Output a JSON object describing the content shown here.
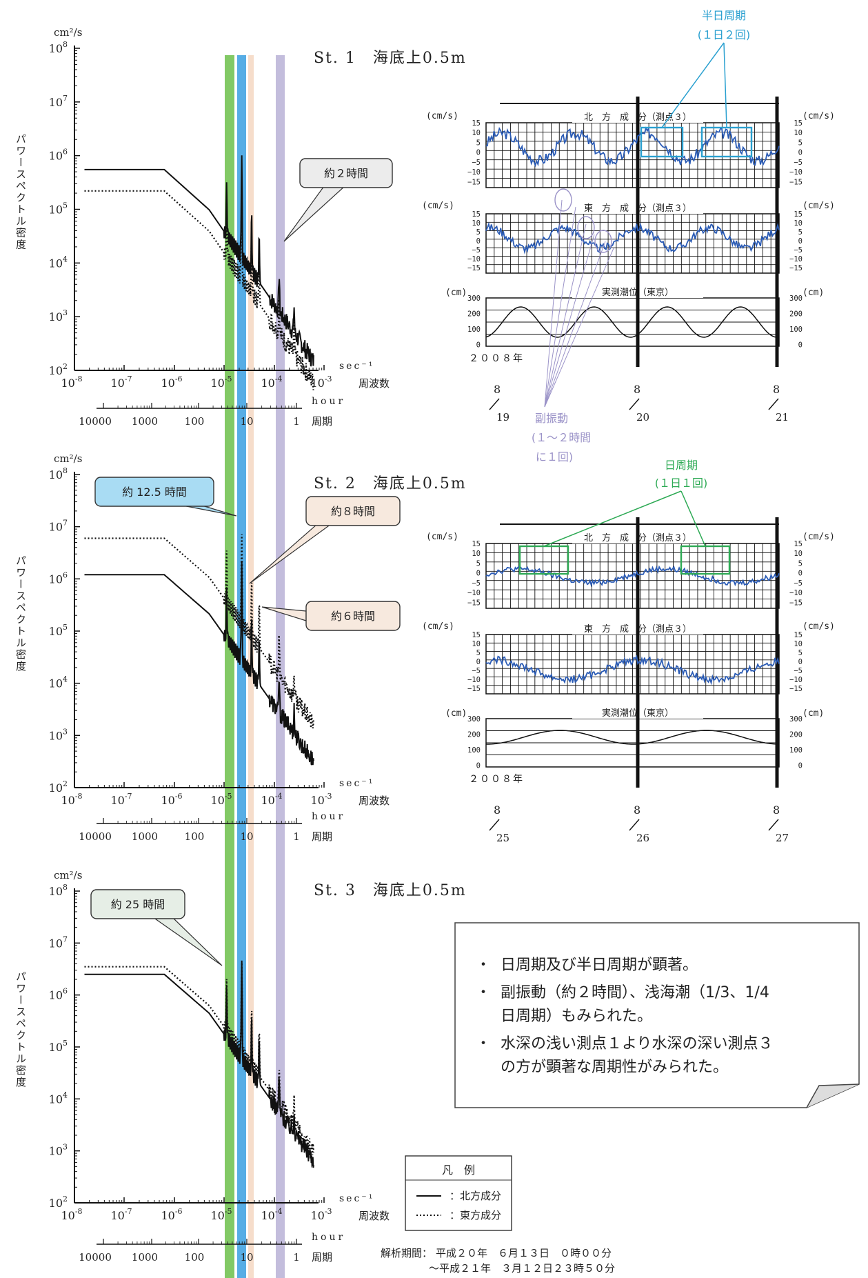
{
  "colors": {
    "band_green": "#6cc04a",
    "band_blue": "#3a9fe0",
    "band_peach": "#f4d7c2",
    "band_lavender": "#b9b2d6",
    "series_blue": "#2a5bb5",
    "box_blue": "#2aa0d0",
    "box_green": "#2eaa55",
    "callout_blue_fill": "#a9dcf3",
    "callout_gray_fill": "#ececec",
    "callout_peach_fill": "#f7e9de",
    "callout_green_fill": "#e6eee6"
  },
  "spectra": [
    {
      "title": "St. 1　海底上0.5m",
      "yunit": "cm²/s",
      "ylabel": "パワースペクトル密度",
      "xlabel_freq": "周波数",
      "xunit_freq": "sec⁻¹",
      "xlabel_period": "周期",
      "xunit_period": "hour",
      "period_ticks": [
        "10000",
        "1000",
        "100",
        "10",
        "1"
      ],
      "callouts": [
        {
          "text": "約２時間"
        }
      ]
    },
    {
      "title": "St. 2　海底上0.5m",
      "yunit": "cm²/s",
      "ylabel": "パワースペクトル密度",
      "xlabel_freq": "周波数",
      "xunit_freq": "sec⁻¹",
      "xlabel_period": "周期",
      "xunit_period": "hour",
      "period_ticks": [
        "10000",
        "1000",
        "100",
        "10",
        "1"
      ],
      "callouts": [
        {
          "text": "約 12.5 時間"
        },
        {
          "text": "約８時間"
        },
        {
          "text": "約６時間"
        }
      ]
    },
    {
      "title": "St. 3　海底上0.5m",
      "yunit": "cm²/s",
      "ylabel": "パワースペクトル密度",
      "xlabel_freq": "周波数",
      "xunit_freq": "sec⁻¹",
      "xlabel_period": "周期",
      "xunit_period": "hour",
      "period_ticks": [
        "10000",
        "1000",
        "100",
        "10",
        "1"
      ],
      "callouts": [
        {
          "text": "約 25 時間"
        }
      ]
    }
  ],
  "timeseries": [
    {
      "annotation_top": {
        "line1": "半日周期",
        "line2": "(１日２回)"
      },
      "unit_cms": "(cm/s)",
      "unit_cm": "(cm)",
      "north_label": "北　方　成　分（測点３）",
      "east_label": "東　方　成　分（測点３）",
      "tide_label": "実測潮位（東京）",
      "year_label": "２００８年",
      "date_labels": [
        "8/19",
        "8/20",
        "8/21"
      ],
      "sub_annotation": {
        "line1": "副振動",
        "line2": "(１～２時間",
        "line3": "に１回)"
      }
    },
    {
      "annotation_top": {
        "line1": "日周期",
        "line2": "(１日１回)"
      },
      "unit_cms": "(cm/s)",
      "unit_cm": "(cm)",
      "north_label": "北　方　成　分（測点３）",
      "east_label": "東　方　成　分（測点３）",
      "tide_label": "実測潮位（東京）",
      "year_label": "２００８年",
      "date_labels": [
        "8/25",
        "8/26",
        "8/27"
      ]
    }
  ],
  "note_box": {
    "items": [
      "日周期及び半日周期が顕著。",
      "副振動（約２時間）、浅海潮（1/3、1/4",
      "日周期）もみられた。",
      "水深の浅い測点１より水深の深い測点３",
      "の方が顕著な周期性がみられた。"
    ]
  },
  "legend": {
    "title": "凡　例",
    "items": [
      {
        "label": "：北方成分"
      },
      {
        "label": "：東方成分"
      }
    ]
  },
  "analysis_period": {
    "label": "解析期間：",
    "line1": "平成２０年　６月１３日　０時００分",
    "line2": "～平成２１年　３月１２日２３時５０分"
  },
  "chart_data": [
    {
      "type": "line",
      "title": "St. 1　海底上0.5m",
      "xscale": "log",
      "yscale": "log",
      "xlim": [
        1e-08,
        0.001
      ],
      "ylim": [
        100.0,
        100000000.0
      ],
      "xlabel": "周波数",
      "ylabel": "パワースペクトル密度",
      "series": [
        {
          "name": "北方成分",
          "style": "solid"
        },
        {
          "name": "東方成分",
          "style": "dotted"
        }
      ],
      "plateau": {
        "solid": 550000.0,
        "dotted": 220000.0
      }
    },
    {
      "type": "line",
      "title": "St. 2　海底上0.5m",
      "xscale": "log",
      "yscale": "log",
      "xlim": [
        1e-08,
        0.001
      ],
      "ylim": [
        100.0,
        100000000.0
      ],
      "xlabel": "周波数",
      "ylabel": "パワースペクトル密度",
      "series": [
        {
          "name": "北方成分",
          "style": "solid"
        },
        {
          "name": "東方成分",
          "style": "dotted"
        }
      ],
      "plateau": {
        "solid": 1200000.0,
        "dotted": 6000000.0
      }
    },
    {
      "type": "line",
      "title": "St. 3　海底上0.5m",
      "xscale": "log",
      "yscale": "log",
      "xlim": [
        1e-08,
        0.001
      ],
      "ylim": [
        100.0,
        100000000.0
      ],
      "xlabel": "周波数",
      "ylabel": "パワースペクトル密度",
      "series": [
        {
          "name": "北方成分",
          "style": "solid"
        },
        {
          "name": "東方成分",
          "style": "dotted"
        }
      ],
      "plateau": {
        "solid": 2500000.0,
        "dotted": 3500000.0
      }
    }
  ]
}
